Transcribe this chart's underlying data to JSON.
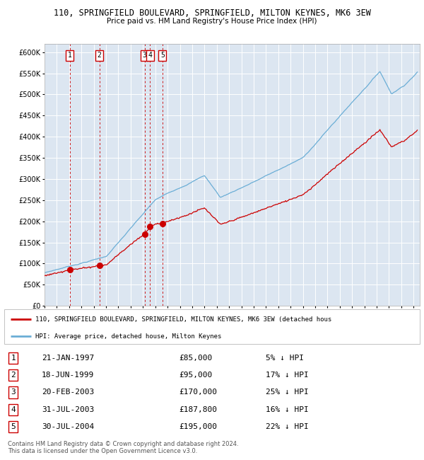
{
  "title": "110, SPRINGFIELD BOULEVARD, SPRINGFIELD, MILTON KEYNES, MK6 3EW",
  "subtitle": "Price paid vs. HM Land Registry's House Price Index (HPI)",
  "background_color": "#dce6f1",
  "plot_bg_color": "#dce6f1",
  "hpi_line_color": "#6baed6",
  "price_line_color": "#cc0000",
  "grid_color": "#ffffff",
  "ylim": [
    0,
    620000
  ],
  "yticks": [
    0,
    50000,
    100000,
    150000,
    200000,
    250000,
    300000,
    350000,
    400000,
    450000,
    500000,
    550000,
    600000
  ],
  "sales": [
    {
      "date_num": 1997.055,
      "price": 85000,
      "label": "1"
    },
    {
      "date_num": 1999.46,
      "price": 95000,
      "label": "2"
    },
    {
      "date_num": 2003.14,
      "price": 170000,
      "label": "3"
    },
    {
      "date_num": 2003.58,
      "price": 187800,
      "label": "4"
    },
    {
      "date_num": 2004.58,
      "price": 195000,
      "label": "5"
    }
  ],
  "legend_property_text": "110, SPRINGFIELD BOULEVARD, SPRINGFIELD, MILTON KEYNES, MK6 3EW (detached hous",
  "legend_hpi_text": "HPI: Average price, detached house, Milton Keynes",
  "table_rows": [
    {
      "num": "1",
      "date": "21-JAN-1997",
      "price": "£85,000",
      "hpi": "5% ↓ HPI"
    },
    {
      "num": "2",
      "date": "18-JUN-1999",
      "price": "£95,000",
      "hpi": "17% ↓ HPI"
    },
    {
      "num": "3",
      "date": "20-FEB-2003",
      "price": "£170,000",
      "hpi": "25% ↓ HPI"
    },
    {
      "num": "4",
      "date": "31-JUL-2003",
      "price": "£187,800",
      "hpi": "16% ↓ HPI"
    },
    {
      "num": "5",
      "date": "30-JUL-2004",
      "price": "£195,000",
      "hpi": "22% ↓ HPI"
    }
  ],
  "footnote": "Contains HM Land Registry data © Crown copyright and database right 2024.\nThis data is licensed under the Open Government Licence v3.0."
}
